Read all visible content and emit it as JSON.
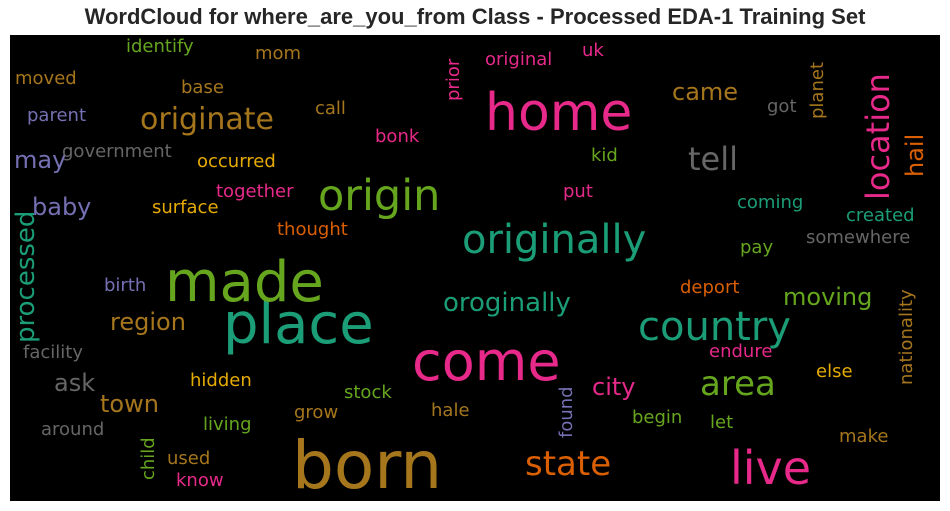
{
  "chart_data": {
    "type": "wordcloud",
    "title": "WordCloud for where_are_you_from Class - Processed EDA-1 Training Set",
    "background": "#000000",
    "words": [
      {
        "text": "born",
        "color": "#a6761d",
        "size": 66
      },
      {
        "text": "place",
        "color": "#1b9e77",
        "size": 56
      },
      {
        "text": "made",
        "color": "#66a61e",
        "size": 56
      },
      {
        "text": "come",
        "color": "#e7298a",
        "size": 54
      },
      {
        "text": "home",
        "color": "#e7298a",
        "size": 52
      },
      {
        "text": "live",
        "color": "#e7298a",
        "size": 46
      },
      {
        "text": "origin",
        "color": "#66a61e",
        "size": 43
      },
      {
        "text": "originally",
        "color": "#1b9e77",
        "size": 40
      },
      {
        "text": "country",
        "color": "#1b9e77",
        "size": 40
      },
      {
        "text": "area",
        "color": "#66a61e",
        "size": 34
      },
      {
        "text": "state",
        "color": "#d95f02",
        "size": 34
      },
      {
        "text": "location",
        "color": "#e7298a",
        "size": 32
      },
      {
        "text": "tell",
        "color": "#666666",
        "size": 32
      },
      {
        "text": "originate",
        "color": "#a6761d",
        "size": 30
      },
      {
        "text": "processed",
        "color": "#1b9e77",
        "size": 26
      },
      {
        "text": "oroginally",
        "color": "#1b9e77",
        "size": 26
      },
      {
        "text": "region",
        "color": "#a6761d",
        "size": 24
      },
      {
        "text": "baby",
        "color": "#7570b3",
        "size": 24
      },
      {
        "text": "came",
        "color": "#a6761d",
        "size": 24
      },
      {
        "text": "moving",
        "color": "#66a61e",
        "size": 24
      },
      {
        "text": "city",
        "color": "#e7298a",
        "size": 24
      },
      {
        "text": "town",
        "color": "#a6761d",
        "size": 24
      },
      {
        "text": "may",
        "color": "#7570b3",
        "size": 24
      },
      {
        "text": "ask",
        "color": "#666666",
        "size": 24
      },
      {
        "text": "hail",
        "color": "#d95f02",
        "size": 24
      },
      {
        "text": "nationality",
        "color": "#a6761d",
        "size": 18
      },
      {
        "text": "found",
        "color": "#7570b3",
        "size": 18
      },
      {
        "text": "planet",
        "color": "#a6761d",
        "size": 18
      },
      {
        "text": "occurred",
        "color": "#e6ab02",
        "size": 18
      },
      {
        "text": "government",
        "color": "#666666",
        "size": 18
      },
      {
        "text": "parent",
        "color": "#7570b3",
        "size": 18
      },
      {
        "text": "moved",
        "color": "#a6761d",
        "size": 18
      },
      {
        "text": "identify",
        "color": "#66a61e",
        "size": 18
      },
      {
        "text": "mom",
        "color": "#a6761d",
        "size": 18
      },
      {
        "text": "base",
        "color": "#a6761d",
        "size": 18
      },
      {
        "text": "call",
        "color": "#a6761d",
        "size": 18
      },
      {
        "text": "prior",
        "color": "#e7298a",
        "size": 18
      },
      {
        "text": "original",
        "color": "#e7298a",
        "size": 18
      },
      {
        "text": "uk",
        "color": "#e7298a",
        "size": 18
      },
      {
        "text": "got",
        "color": "#666666",
        "size": 18
      },
      {
        "text": "bonk",
        "color": "#e7298a",
        "size": 18
      },
      {
        "text": "kid",
        "color": "#66a61e",
        "size": 18
      },
      {
        "text": "together",
        "color": "#e7298a",
        "size": 18
      },
      {
        "text": "put",
        "color": "#e7298a",
        "size": 18
      },
      {
        "text": "surface",
        "color": "#e6ab02",
        "size": 18
      },
      {
        "text": "coming",
        "color": "#1b9e77",
        "size": 18
      },
      {
        "text": "created",
        "color": "#1b9e77",
        "size": 18
      },
      {
        "text": "thought",
        "color": "#d95f02",
        "size": 18
      },
      {
        "text": "somewhere",
        "color": "#666666",
        "size": 18
      },
      {
        "text": "pay",
        "color": "#66a61e",
        "size": 18
      },
      {
        "text": "birth",
        "color": "#7570b3",
        "size": 18
      },
      {
        "text": "deport",
        "color": "#d95f02",
        "size": 18
      },
      {
        "text": "facility",
        "color": "#666666",
        "size": 18
      },
      {
        "text": "endure",
        "color": "#e7298a",
        "size": 18
      },
      {
        "text": "hidden",
        "color": "#e6ab02",
        "size": 18
      },
      {
        "text": "else",
        "color": "#e6ab02",
        "size": 18
      },
      {
        "text": "stock",
        "color": "#66a61e",
        "size": 18
      },
      {
        "text": "grow",
        "color": "#a6761d",
        "size": 18
      },
      {
        "text": "hale",
        "color": "#a6761d",
        "size": 18
      },
      {
        "text": "begin",
        "color": "#66a61e",
        "size": 18
      },
      {
        "text": "let",
        "color": "#66a61e",
        "size": 18
      },
      {
        "text": "around",
        "color": "#666666",
        "size": 18
      },
      {
        "text": "living",
        "color": "#66a61e",
        "size": 18
      },
      {
        "text": "make",
        "color": "#a6761d",
        "size": 18
      },
      {
        "text": "child",
        "color": "#66a61e",
        "size": 18
      },
      {
        "text": "used",
        "color": "#a6761d",
        "size": 18
      },
      {
        "text": "know",
        "color": "#e7298a",
        "size": 18
      }
    ]
  }
}
